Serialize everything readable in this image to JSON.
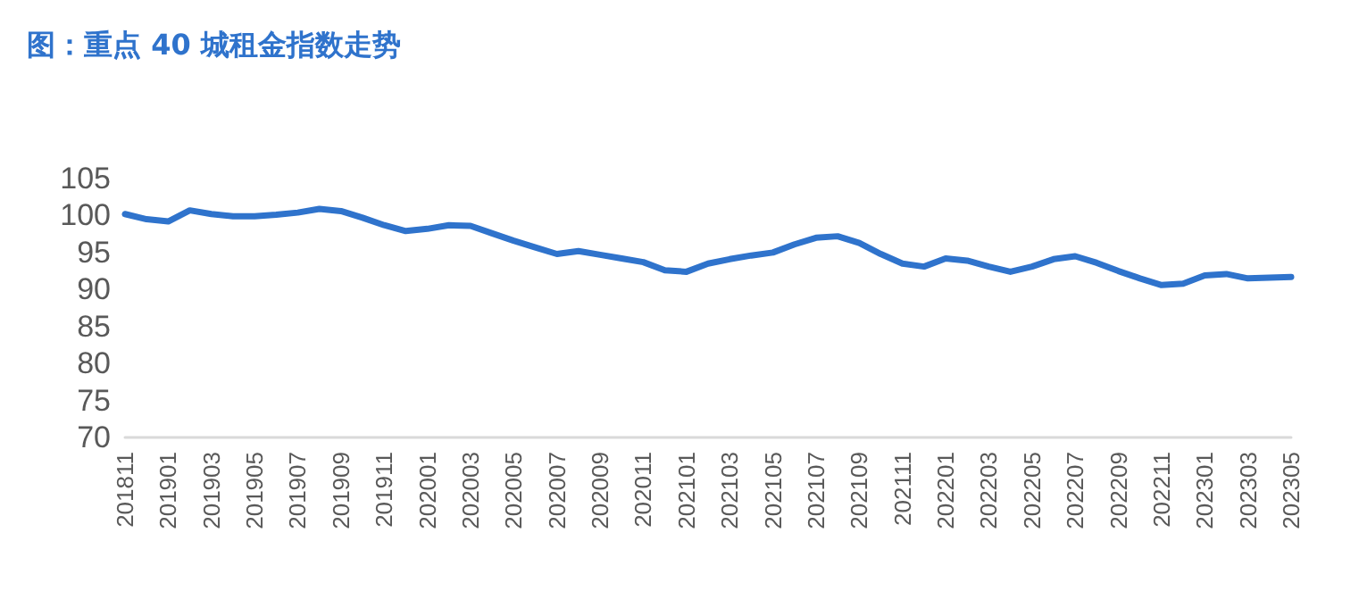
{
  "chart_data": {
    "type": "line",
    "title": "图：重点 40 城租金指数走势",
    "categories": [
      "201811",
      null,
      "201901",
      null,
      "201903",
      null,
      "201905",
      null,
      "201907",
      null,
      "201909",
      null,
      "201911",
      null,
      "202001",
      null,
      "202003",
      null,
      "202005",
      null,
      "202007",
      null,
      "202009",
      null,
      "202011",
      null,
      "202101",
      null,
      "202103",
      null,
      "202105",
      null,
      "202107",
      null,
      "202109",
      null,
      "202111",
      null,
      "202201",
      null,
      "202203",
      null,
      "202205",
      null,
      "202207",
      null,
      "202209",
      null,
      "202211",
      null,
      "202301",
      null,
      "202303",
      null,
      "202305"
    ],
    "series": [
      {
        "color": "#2f73cc",
        "values": [
          100.2,
          99.5,
          99.2,
          100.7,
          100.2,
          99.9,
          99.9,
          100.1,
          100.4,
          100.9,
          100.6,
          99.7,
          98.7,
          97.9,
          98.2,
          98.7,
          98.6,
          97.6,
          96.6,
          95.7,
          94.8,
          95.2,
          94.7,
          94.2,
          93.7,
          92.6,
          92.4,
          93.5,
          94.1,
          94.6,
          95.0,
          96.1,
          97.0,
          97.2,
          96.3,
          94.8,
          93.5,
          93.1,
          94.2,
          93.9,
          93.1,
          92.4,
          93.1,
          94.1,
          94.5,
          93.6,
          92.5,
          91.5,
          90.6,
          90.8,
          91.9,
          92.1,
          91.5,
          91.6,
          91.7
        ]
      }
    ],
    "ylim": [
      70,
      105
    ],
    "yticks": [
      70,
      75,
      80,
      85,
      90,
      95,
      100,
      105
    ],
    "grid": false,
    "marker": "none",
    "line_style": "solid"
  }
}
